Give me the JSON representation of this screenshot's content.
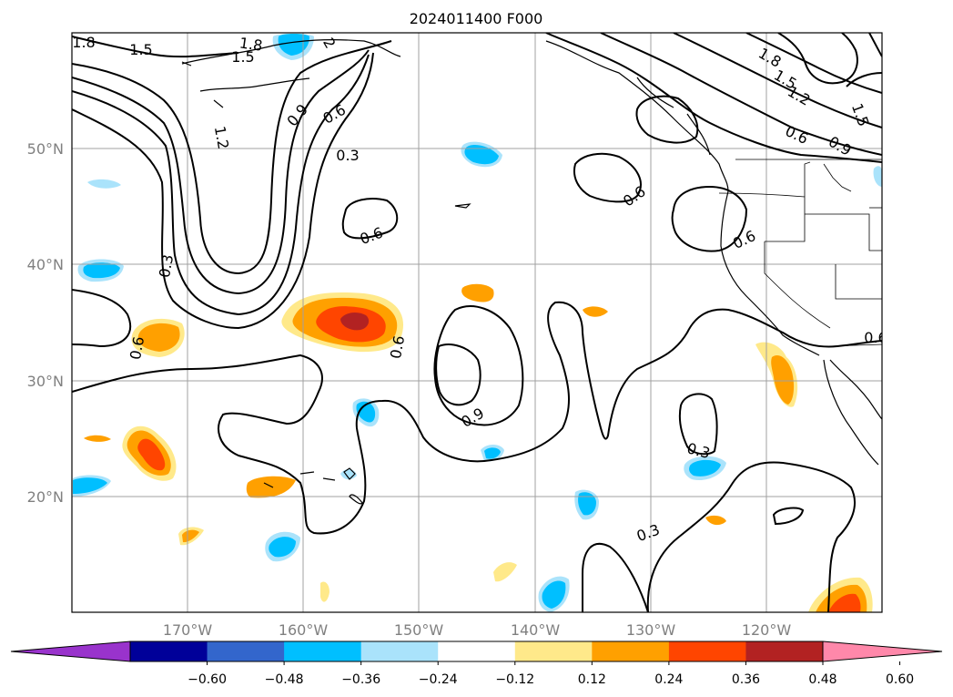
{
  "title": "2024011400 F000",
  "map": {
    "lat_labels": [
      "50°N",
      "40°N",
      "30°N",
      "20°N"
    ],
    "lon_labels": [
      "170°W",
      "160°W",
      "150°W",
      "140°W",
      "130°W",
      "120°W"
    ],
    "contour_labels": [
      "1.8",
      "1.5",
      "1.8",
      "1.5",
      "2",
      "1.2",
      "0.9",
      "0.6",
      "0.3",
      "0.6",
      "0.6",
      "1.8",
      "1.5",
      "1.2",
      "0.9",
      "1.5",
      "0.6",
      "0.6",
      "0.3",
      "0.6",
      "0.6",
      "0.9",
      "0.3",
      "0.3",
      "0.6"
    ]
  },
  "colorbar": {
    "tick_labels": [
      "−0.60",
      "−0.48",
      "−0.36",
      "−0.24",
      "−0.12",
      "0.12",
      "0.24",
      "0.36",
      "0.48",
      "0.60"
    ],
    "colors": [
      "#9933cc",
      "#000099",
      "#3366cc",
      "#00bfff",
      "#aae3fb",
      "#ffffff",
      "#ffe98a",
      "#ffa000",
      "#ff4500",
      "#b22222",
      "#ff88aa"
    ]
  }
}
